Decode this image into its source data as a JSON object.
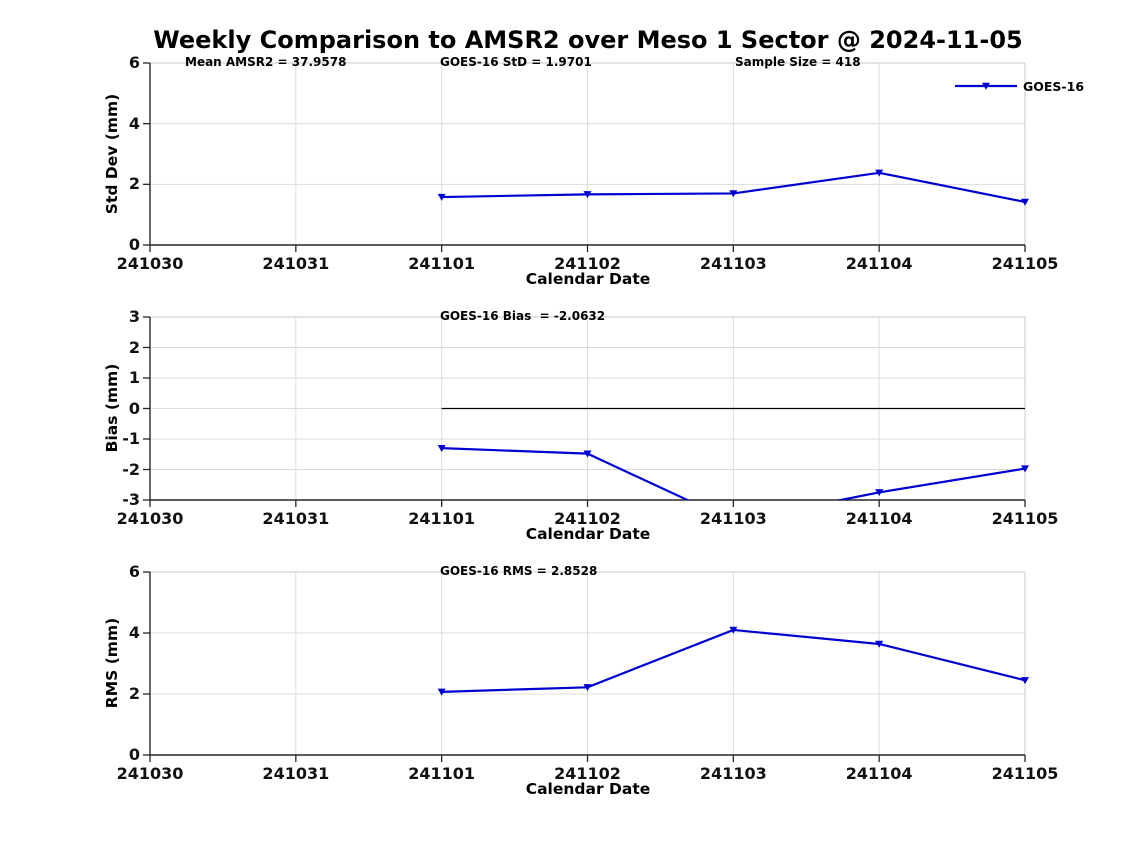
{
  "page": {
    "title": "Weekly Comparison to AMSR2 over Meso 1 Sector @ 2024-11-05"
  },
  "chart_data": [
    {
      "type": "line",
      "id": "std-dev",
      "annotations": [
        "Mean AMSR2 = 37.9578",
        "GOES-16 StD = 1.9701",
        "Sample Size = 418"
      ],
      "ylabel": "Std Dev (mm)",
      "xlabel": "Calendar Date",
      "categories": [
        "241030",
        "241031",
        "241101",
        "241102",
        "241103",
        "241104",
        "241105"
      ],
      "ylim": [
        0,
        6
      ],
      "yticks": [
        0,
        2,
        4,
        6
      ],
      "grid": true,
      "zero_line": false,
      "legend": {
        "label": "GOES-16",
        "position": "top-right"
      },
      "series": [
        {
          "name": "GOES-16",
          "color": "#0000d0",
          "x": [
            "241101",
            "241102",
            "241103",
            "241104",
            "241105"
          ],
          "values": [
            1.58,
            1.67,
            1.7,
            2.38,
            1.42
          ]
        }
      ]
    },
    {
      "type": "line",
      "id": "bias",
      "annotations": [
        "GOES-16 Bias  = -2.0632"
      ],
      "ylabel": "Bias (mm)",
      "xlabel": "Calendar Date",
      "categories": [
        "241030",
        "241031",
        "241101",
        "241102",
        "241103",
        "241104",
        "241105"
      ],
      "ylim": [
        -3,
        3
      ],
      "yticks": [
        -3,
        -2,
        -1,
        0,
        1,
        2,
        3
      ],
      "grid": true,
      "zero_line": true,
      "series": [
        {
          "name": "GOES-16",
          "color": "#0000d0",
          "x": [
            "241101",
            "241102",
            "241103",
            "241104",
            "241105"
          ],
          "values": [
            -1.3,
            -1.48,
            -3.7,
            -2.75,
            -1.97
          ],
          "note": "241103 value lies below the y-axis minimum of -3 and is clipped off-plot"
        }
      ]
    },
    {
      "type": "line",
      "id": "rms",
      "annotations": [
        "GOES-16 RMS = 2.8528"
      ],
      "ylabel": "RMS (mm)",
      "xlabel": "Calendar Date",
      "categories": [
        "241030",
        "241031",
        "241101",
        "241102",
        "241103",
        "241104",
        "241105"
      ],
      "ylim": [
        0,
        6
      ],
      "yticks": [
        0,
        2,
        4,
        6
      ],
      "grid": true,
      "zero_line": false,
      "series": [
        {
          "name": "GOES-16",
          "color": "#0000d0",
          "x": [
            "241101",
            "241102",
            "241103",
            "241104",
            "241105"
          ],
          "values": [
            2.07,
            2.22,
            4.1,
            3.64,
            2.45
          ]
        }
      ]
    }
  ],
  "style_colors": {
    "line": "#0000d0",
    "grid": "#dcdcdc",
    "axis": "#262626",
    "box_light": "#c8c8c8",
    "zero_line": "#000000"
  }
}
